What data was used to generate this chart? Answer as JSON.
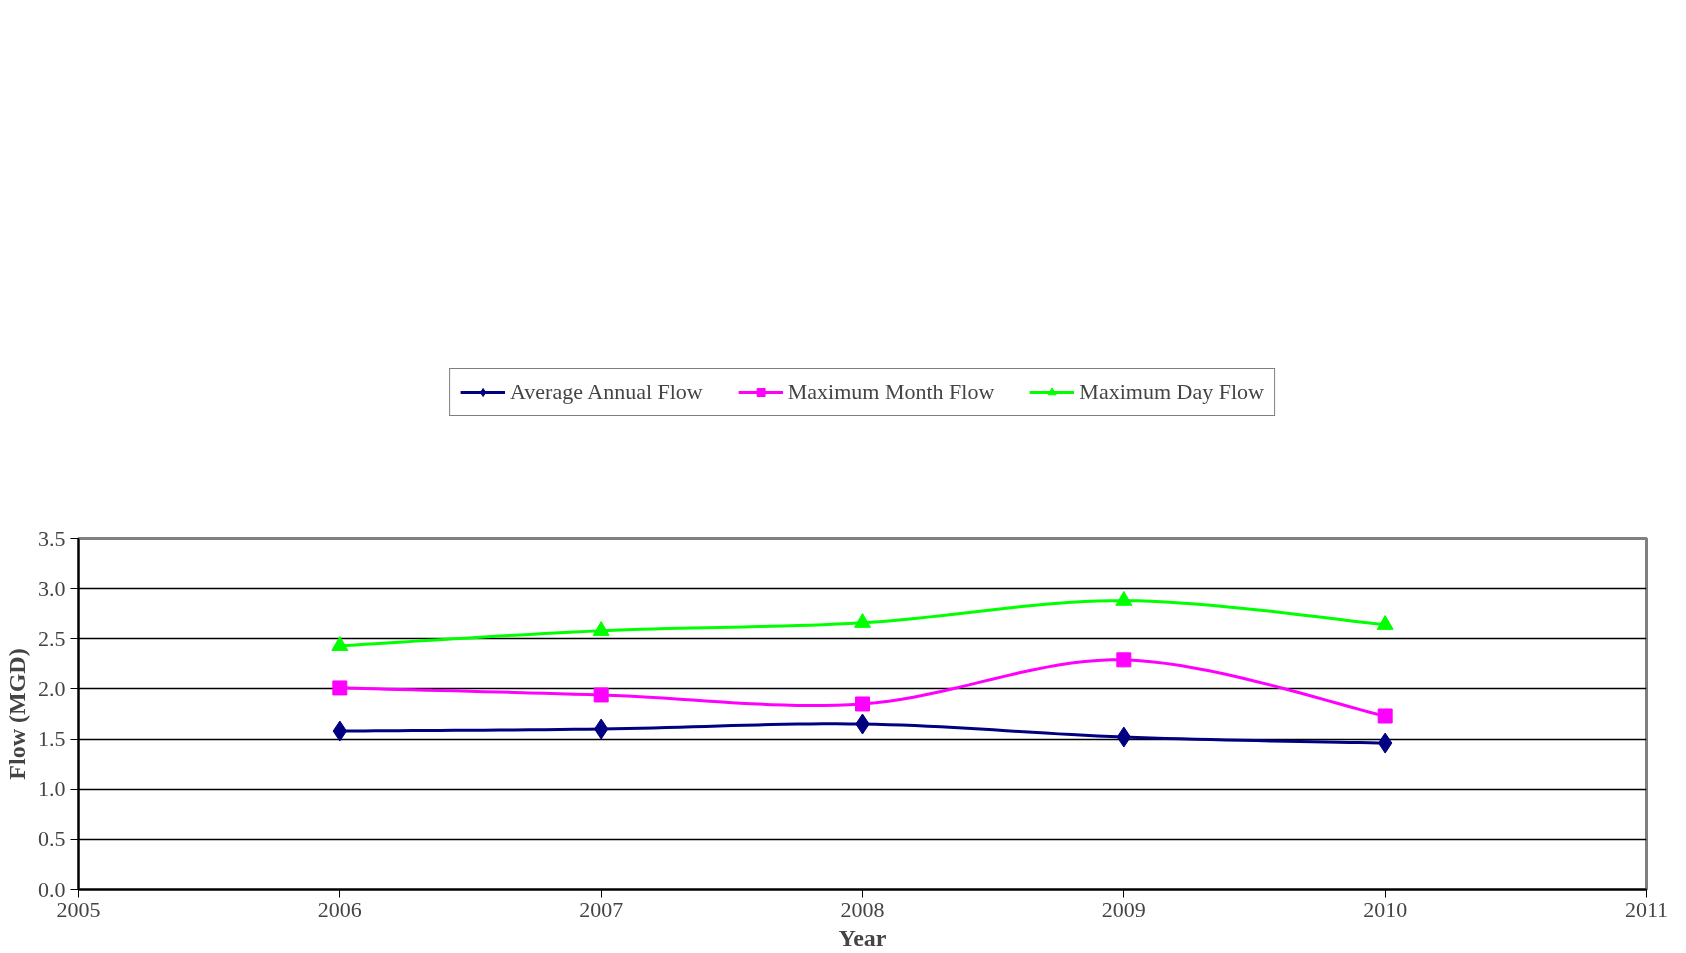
{
  "chart_data": {
    "type": "line",
    "xlabel": "Year",
    "ylabel": "Flow (MGD)",
    "x": [
      2006,
      2007,
      2008,
      2009,
      2010
    ],
    "series": [
      {
        "name": "Average Annual Flow",
        "color": "#000080",
        "marker": "diamond",
        "values": [
          1.58,
          1.6,
          1.65,
          1.52,
          1.46
        ]
      },
      {
        "name": "Maximum Month Flow",
        "color": "#ff00ff",
        "marker": "square",
        "values": [
          2.01,
          1.94,
          1.85,
          2.29,
          1.73
        ]
      },
      {
        "name": "Maximum Day Flow",
        "color": "#00ff00",
        "marker": "triangle",
        "values": [
          2.43,
          2.58,
          2.66,
          2.88,
          2.64
        ]
      }
    ],
    "xlim": [
      2005,
      2011
    ],
    "xticks": [
      2005,
      2006,
      2007,
      2008,
      2009,
      2010,
      2011
    ],
    "ylim": [
      0,
      3.5
    ],
    "yticks": [
      {
        "value": 0,
        "label": "0.0"
      },
      {
        "value": 0.5,
        "label": "0.5"
      },
      {
        "value": 1,
        "label": "1.0"
      },
      {
        "value": 1.5,
        "label": "1.5"
      },
      {
        "value": 2,
        "label": "2.0"
      },
      {
        "value": 2.5,
        "label": "2.5"
      },
      {
        "value": 3,
        "label": "3.0"
      },
      {
        "value": 3.5,
        "label": "3.5"
      }
    ],
    "grid": "y",
    "legend": "top",
    "line_style": "solid"
  }
}
